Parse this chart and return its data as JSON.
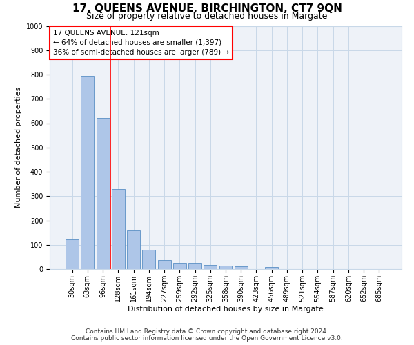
{
  "title": "17, QUEENS AVENUE, BIRCHINGTON, CT7 9QN",
  "subtitle": "Size of property relative to detached houses in Margate",
  "xlabel": "Distribution of detached houses by size in Margate",
  "ylabel": "Number of detached properties",
  "categories": [
    "30sqm",
    "63sqm",
    "96sqm",
    "128sqm",
    "161sqm",
    "194sqm",
    "227sqm",
    "259sqm",
    "292sqm",
    "325sqm",
    "358sqm",
    "390sqm",
    "423sqm",
    "456sqm",
    "489sqm",
    "521sqm",
    "554sqm",
    "587sqm",
    "620sqm",
    "652sqm",
    "685sqm"
  ],
  "values": [
    122,
    795,
    620,
    328,
    160,
    80,
    36,
    26,
    25,
    18,
    15,
    10,
    0,
    8,
    0,
    0,
    0,
    0,
    0,
    0,
    0
  ],
  "bar_color": "#aec6e8",
  "bar_edge_color": "#5a8fc4",
  "grid_color": "#c8d8e8",
  "bg_color": "#eef2f8",
  "vline_x": 2.5,
  "vline_color": "red",
  "annotation_text": "17 QUEENS AVENUE: 121sqm\n← 64% of detached houses are smaller (1,397)\n36% of semi-detached houses are larger (789) →",
  "annotation_box_color": "white",
  "annotation_box_edge": "red",
  "ylim": [
    0,
    1000
  ],
  "yticks": [
    0,
    100,
    200,
    300,
    400,
    500,
    600,
    700,
    800,
    900,
    1000
  ],
  "footnote": "Contains HM Land Registry data © Crown copyright and database right 2024.\nContains public sector information licensed under the Open Government Licence v3.0.",
  "title_fontsize": 11,
  "subtitle_fontsize": 9,
  "label_fontsize": 8,
  "tick_fontsize": 7,
  "annotation_fontsize": 7.5,
  "footnote_fontsize": 6.5
}
